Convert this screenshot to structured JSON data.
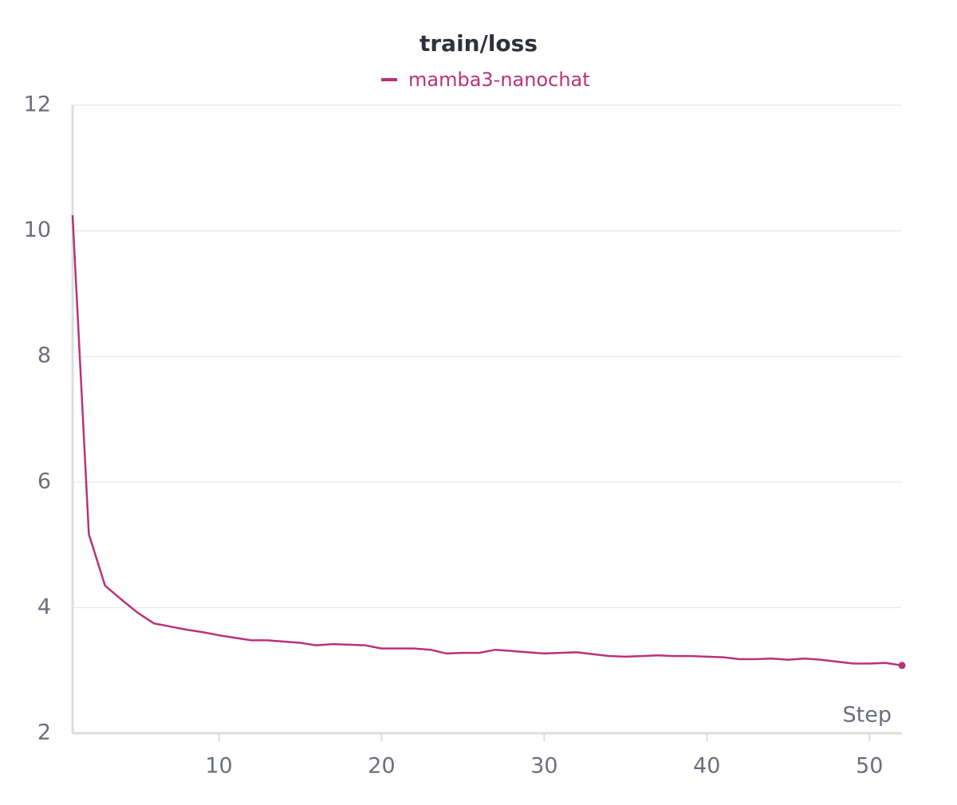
{
  "chart_data": {
    "type": "line",
    "title": "train/loss",
    "x_label": "Step",
    "x": [
      1,
      2,
      3,
      4,
      5,
      6,
      7,
      8,
      9,
      10,
      11,
      12,
      13,
      14,
      15,
      16,
      17,
      18,
      19,
      20,
      21,
      22,
      23,
      24,
      25,
      26,
      27,
      28,
      29,
      30,
      31,
      32,
      33,
      34,
      35,
      36,
      37,
      38,
      39,
      40,
      41,
      42,
      43,
      44,
      45,
      46,
      47,
      48,
      49,
      50,
      51,
      52
    ],
    "series": [
      {
        "name": "mamba3-nanochat",
        "color": "#b8327b",
        "values": [
          10.25,
          5.17,
          4.35,
          4.13,
          3.92,
          3.75,
          3.7,
          3.65,
          3.61,
          3.56,
          3.52,
          3.48,
          3.48,
          3.46,
          3.44,
          3.4,
          3.42,
          3.41,
          3.4,
          3.35,
          3.35,
          3.35,
          3.33,
          3.27,
          3.28,
          3.28,
          3.33,
          3.31,
          3.29,
          3.27,
          3.28,
          3.29,
          3.26,
          3.23,
          3.22,
          3.23,
          3.24,
          3.23,
          3.23,
          3.22,
          3.21,
          3.18,
          3.18,
          3.19,
          3.17,
          3.19,
          3.17,
          3.14,
          3.11,
          3.11,
          3.12,
          3.08
        ]
      }
    ],
    "xlim": [
      1,
      52
    ],
    "xticks": [
      10,
      20,
      30,
      40,
      50
    ],
    "ylim": [
      2,
      12
    ],
    "yticks": [
      2,
      4,
      6,
      8,
      10,
      12
    ],
    "grid": true
  }
}
